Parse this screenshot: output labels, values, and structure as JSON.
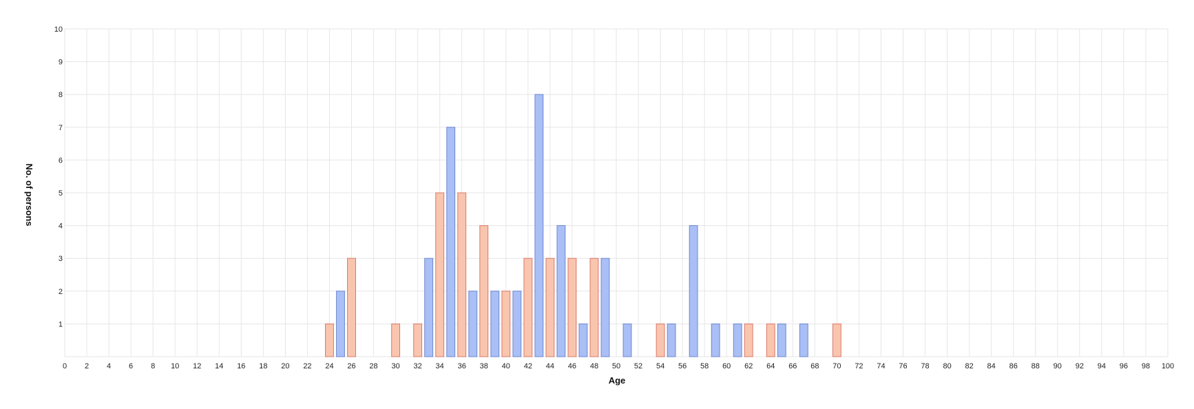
{
  "chart_data": {
    "type": "bar",
    "title": "",
    "xlabel": "Age",
    "ylabel": "No. of persons",
    "xlim": [
      0,
      100
    ],
    "ylim": [
      0,
      10
    ],
    "x_ticks": [
      0,
      2,
      4,
      6,
      8,
      10,
      12,
      14,
      16,
      18,
      20,
      22,
      24,
      26,
      28,
      30,
      32,
      34,
      36,
      38,
      40,
      42,
      44,
      46,
      48,
      50,
      52,
      54,
      56,
      58,
      60,
      62,
      64,
      66,
      68,
      70,
      72,
      74,
      76,
      78,
      80,
      82,
      84,
      86,
      88,
      90,
      92,
      94,
      96,
      98,
      100
    ],
    "y_ticks": [
      1,
      2,
      3,
      4,
      5,
      6,
      7,
      8,
      9,
      10
    ],
    "grid": true,
    "legend": false,
    "series": [
      {
        "color": "#a9bff5",
        "stroke": "#6d87cf",
        "points": [
          {
            "x": 25,
            "y": 2
          },
          {
            "x": 33,
            "y": 3
          },
          {
            "x": 35,
            "y": 7
          },
          {
            "x": 37,
            "y": 2
          },
          {
            "x": 39,
            "y": 2
          },
          {
            "x": 41,
            "y": 2
          },
          {
            "x": 43,
            "y": 8
          },
          {
            "x": 45,
            "y": 4
          },
          {
            "x": 47,
            "y": 1
          },
          {
            "x": 49,
            "y": 3
          },
          {
            "x": 51,
            "y": 1
          },
          {
            "x": 55,
            "y": 1
          },
          {
            "x": 57,
            "y": 4
          },
          {
            "x": 59,
            "y": 1
          },
          {
            "x": 61,
            "y": 1
          },
          {
            "x": 65,
            "y": 1
          },
          {
            "x": 67,
            "y": 1
          }
        ]
      },
      {
        "color": "#f9c5ae",
        "stroke": "#d9786a",
        "points": [
          {
            "x": 24,
            "y": 1
          },
          {
            "x": 26,
            "y": 3
          },
          {
            "x": 30,
            "y": 1
          },
          {
            "x": 32,
            "y": 1
          },
          {
            "x": 34,
            "y": 5
          },
          {
            "x": 36,
            "y": 5
          },
          {
            "x": 38,
            "y": 4
          },
          {
            "x": 40,
            "y": 2
          },
          {
            "x": 42,
            "y": 3
          },
          {
            "x": 44,
            "y": 3
          },
          {
            "x": 46,
            "y": 3
          },
          {
            "x": 48,
            "y": 3
          },
          {
            "x": 54,
            "y": 1
          },
          {
            "x": 62,
            "y": 1
          },
          {
            "x": 64,
            "y": 1
          },
          {
            "x": 70,
            "y": 1
          }
        ]
      }
    ]
  }
}
